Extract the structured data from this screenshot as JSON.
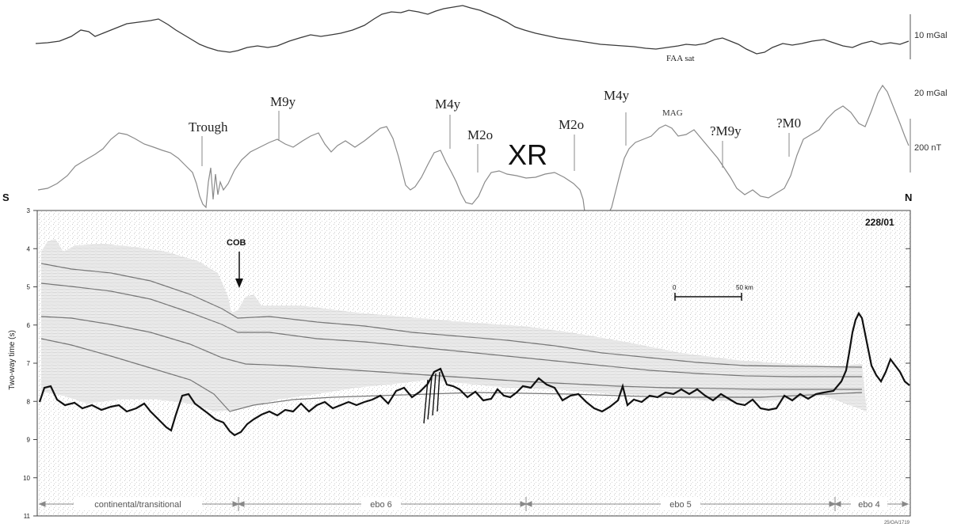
{
  "profile_id": "228/01",
  "directions": {
    "left": "S",
    "right": "N"
  },
  "gravity": {
    "label": "FAA sat",
    "scale_label": "10 mGal",
    "scale2_label": "20 mGal"
  },
  "magnetics": {
    "label": "MAG",
    "scale_label": "200 nT"
  },
  "anomaly_labels": [
    {
      "text": "Trough"
    },
    {
      "text": "M9y"
    },
    {
      "text": "M4y"
    },
    {
      "text": "M2o"
    },
    {
      "text": "M2o"
    },
    {
      "text": "M4y"
    },
    {
      "text": "?M9y"
    },
    {
      "text": "?M0"
    }
  ],
  "xr_label": "XR",
  "cob_label": "COB",
  "scale_bar": {
    "start": "0",
    "end": "50 km"
  },
  "y_axis": {
    "label": "Two-way time (s)",
    "ticks": [
      "3",
      "4",
      "5",
      "6",
      "7",
      "8",
      "9",
      "10",
      "11"
    ]
  },
  "segments": [
    "continental/transitional",
    "ebo 6",
    "ebo 5",
    "ebo 4"
  ],
  "figure_code": "25/OA/1719"
}
